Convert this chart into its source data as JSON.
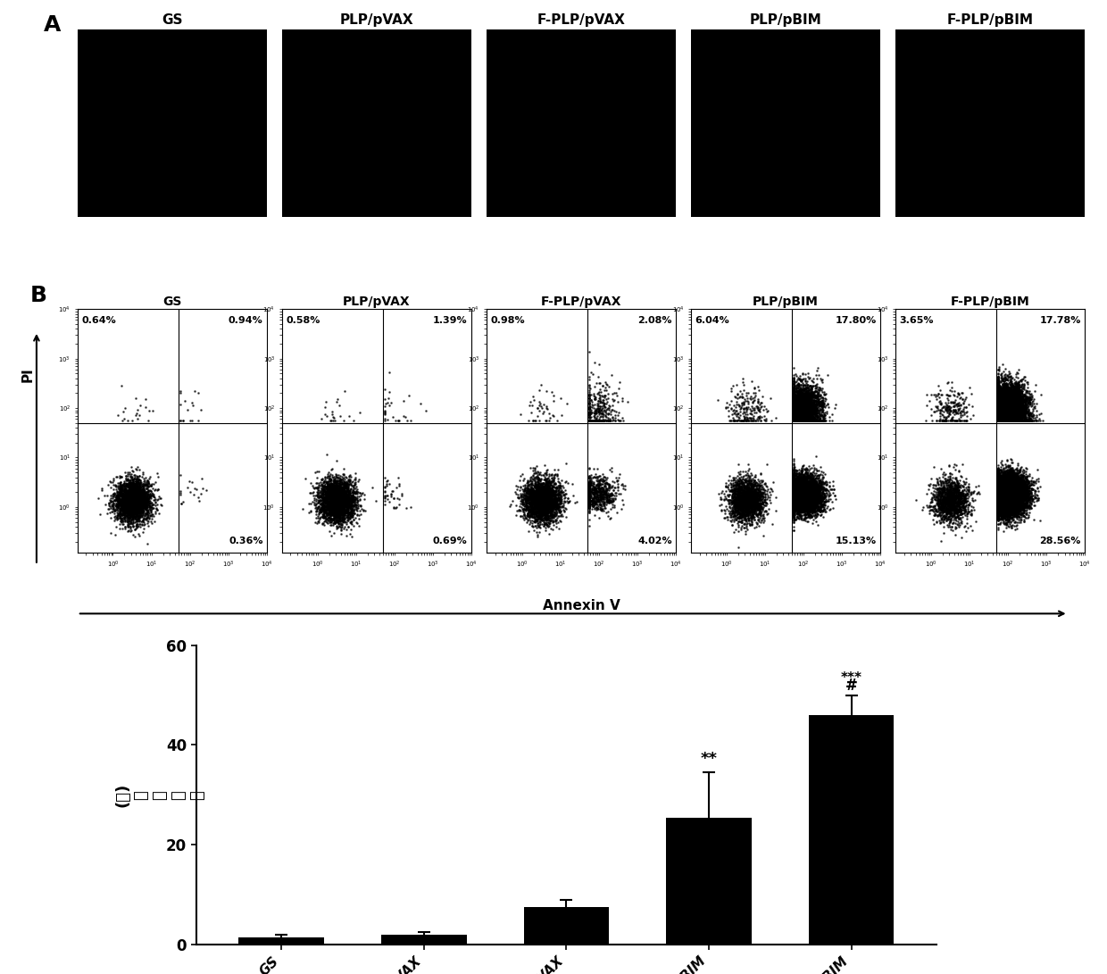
{
  "panel_A_labels": [
    "GS",
    "PLP/pVAX",
    "F-PLP/pVAX",
    "PLP/pBIM",
    "F-PLP/pBIM"
  ],
  "panel_B_labels": [
    "GS",
    "PLP/pVAX",
    "F-PLP/pVAX",
    "PLP/pBIM",
    "F-PLP/pBIM"
  ],
  "panel_B_data": [
    {
      "ul": "0.64%",
      "ur": "0.94%",
      "lr": "0.36%"
    },
    {
      "ul": "0.58%",
      "ur": "1.39%",
      "lr": "0.69%"
    },
    {
      "ul": "0.98%",
      "ur": "2.08%",
      "lr": "4.02%"
    },
    {
      "ul": "6.04%",
      "ur": "17.80%",
      "lr": "15.13%"
    },
    {
      "ul": "3.65%",
      "ur": "17.78%",
      "lr": "28.56%"
    }
  ],
  "panel_C_categories": [
    "GS",
    "PLP/pVAX",
    "F-PLP/pVAX",
    "PLP/pBIM",
    "F-PLP/pBIM"
  ],
  "panel_C_values": [
    1.5,
    2.0,
    7.5,
    25.5,
    46.0
  ],
  "panel_C_errors": [
    0.5,
    0.5,
    1.5,
    9.0,
    4.0
  ],
  "panel_C_ylabel_lines": [
    "(％)",
    "凋",
    "亡",
    "细",
    "胞"
  ],
  "panel_C_ylim": [
    0,
    60
  ],
  "panel_C_yticks": [
    0,
    20,
    40,
    60
  ],
  "bar_color": "#000000",
  "background_color": "#ffffff"
}
